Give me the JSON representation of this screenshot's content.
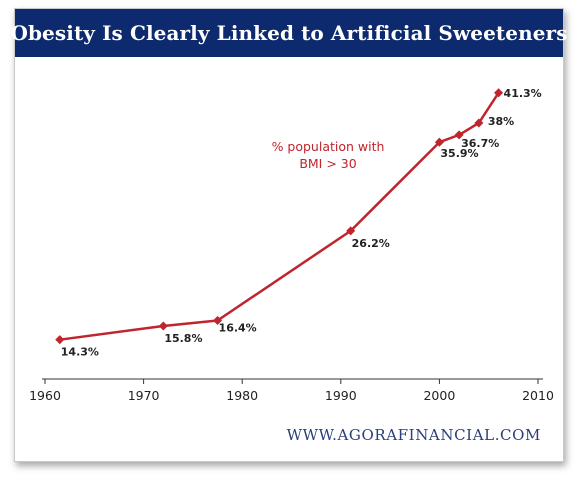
{
  "title": "Obesity Is Clearly Linked to Artificial Sweeteners",
  "footer": "WWW.AGORAFINANCIAL.COM",
  "colors": {
    "title_bg": "#0d2a6e",
    "line": "#c0242c",
    "footer": "#2a3e78"
  },
  "chart_data": {
    "type": "line",
    "title": "Obesity Is Clearly Linked to Artificial Sweeteners",
    "xlim": [
      1960,
      2010
    ],
    "ylim": [
      10,
      45
    ],
    "x_ticks": [
      1960,
      1970,
      1980,
      1990,
      2000,
      2010
    ],
    "grid": false,
    "series": [
      {
        "name": "% population with BMI > 30",
        "x": [
          1961.5,
          1972,
          1977.5,
          1991,
          2000,
          2002,
          2004,
          2006
        ],
        "y": [
          14.3,
          15.8,
          16.4,
          26.2,
          35.9,
          36.7,
          38,
          41.3
        ],
        "labels": [
          "14.3%",
          "15.8%",
          "16.4%",
          "26.2%",
          "35.9%",
          "36.7%",
          "38%",
          "41.3%"
        ]
      }
    ],
    "annotation": [
      "% population with",
      "BMI > 30"
    ]
  }
}
